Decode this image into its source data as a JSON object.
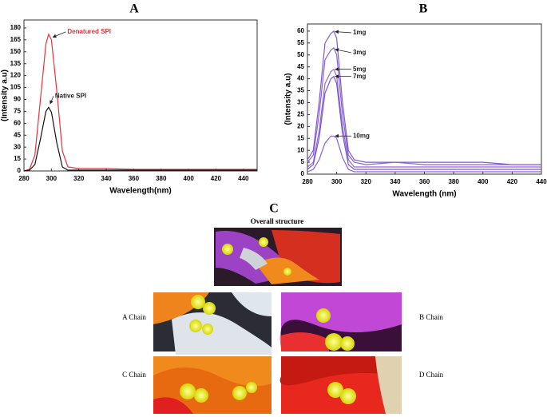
{
  "chart_data": [
    {
      "type": "line",
      "title": "A",
      "x_label": "Wavelength(nm)",
      "y_label": "(Intensity a.u)",
      "x": [
        280,
        284,
        288,
        292,
        296,
        298,
        300,
        304,
        308,
        312,
        320,
        340,
        360,
        380,
        400,
        420,
        440,
        450
      ],
      "series": [
        {
          "name": "Denatured SPI",
          "color": "#e8323c",
          "values": [
            0,
            2,
            20,
            90,
            160,
            172,
            165,
            100,
            25,
            5,
            3,
            3,
            2,
            2,
            2,
            2,
            2,
            2
          ]
        },
        {
          "name": "Native SPI",
          "color": "#111111",
          "values": [
            0,
            1,
            8,
            40,
            75,
            80,
            74,
            35,
            5,
            1,
            1,
            1,
            1,
            1,
            1,
            1,
            1,
            1
          ]
        }
      ],
      "xlim": [
        280,
        450
      ],
      "ylim": [
        0,
        190
      ],
      "xticks": [
        280,
        300,
        320,
        340,
        360,
        380,
        400,
        420,
        440
      ],
      "yticks": [
        0,
        15,
        30,
        45,
        60,
        75,
        90,
        105,
        120,
        135,
        150,
        165,
        180
      ],
      "grid": false
    },
    {
      "type": "line",
      "title": "B",
      "x_label": "Wavelength (nm)",
      "y_label": "(Intensity a.u)",
      "x": [
        280,
        284,
        288,
        292,
        296,
        298,
        300,
        304,
        308,
        312,
        320,
        340,
        360,
        380,
        400,
        420,
        440
      ],
      "series": [
        {
          "name": "1mg",
          "color": "#7b5cd6",
          "values": [
            6,
            10,
            30,
            55,
            59,
            60,
            57,
            30,
            10,
            6,
            5,
            5,
            5,
            5,
            5,
            4,
            4
          ]
        },
        {
          "name": "3mg",
          "color": "#8a62d0",
          "values": [
            5,
            8,
            25,
            48,
            52,
            53,
            50,
            25,
            8,
            5,
            4,
            5,
            4,
            4,
            4,
            4,
            4
          ]
        },
        {
          "name": "5mg",
          "color": "#9a66cc",
          "values": [
            3,
            5,
            18,
            38,
            43,
            44,
            41,
            20,
            6,
            3,
            3,
            3,
            3,
            3,
            3,
            3,
            3
          ]
        },
        {
          "name": "7mg",
          "color": "#6f58d8",
          "values": [
            2,
            4,
            15,
            34,
            40,
            41,
            38,
            17,
            4,
            2,
            2,
            2,
            2,
            2,
            2,
            2,
            2
          ]
        },
        {
          "name": "10mg",
          "color": "#8d5fd4",
          "values": [
            1,
            2,
            6,
            13,
            16,
            16,
            15,
            7,
            2,
            1,
            1,
            1,
            1,
            1,
            1,
            1,
            1
          ]
        }
      ],
      "xlim": [
        280,
        440
      ],
      "ylim": [
        0,
        63
      ],
      "xticks": [
        280,
        300,
        320,
        340,
        360,
        380,
        400,
        420,
        440
      ],
      "yticks": [
        0,
        5,
        10,
        15,
        20,
        25,
        30,
        35,
        40,
        45,
        50,
        55,
        60
      ],
      "grid": false
    }
  ],
  "panel_c": {
    "label": "C",
    "overall_structure": "Overall structure",
    "chains": [
      "A Chain",
      "B Chain",
      "C Chain",
      "D Chain"
    ]
  }
}
